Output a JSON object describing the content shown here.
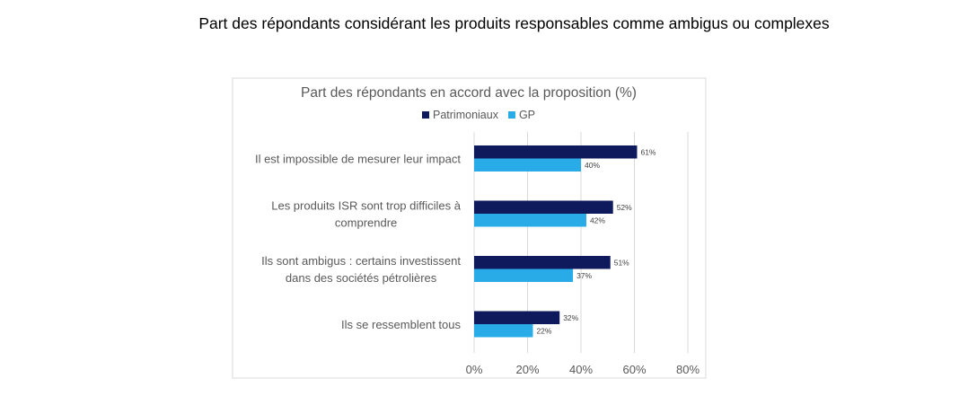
{
  "page_title": "Part des répondants considérant les produits responsables comme ambigus ou complexes",
  "chart_data": {
    "type": "bar",
    "orientation": "horizontal",
    "title": "Part des répondants en accord avec la proposition (%)",
    "categories": [
      [
        "Il est impossible de mesurer leur impact"
      ],
      [
        "Les produits ISR sont trop difficiles à",
        "comprendre"
      ],
      [
        "Ils sont ambigus : certains investissent",
        "dans des sociétés pétrolières"
      ],
      [
        "Ils se ressemblent tous"
      ]
    ],
    "series": [
      {
        "name": "Patrimoniaux",
        "color": "#0f1a5c",
        "values": [
          61,
          52,
          51,
          32
        ],
        "labels": [
          "61%",
          "52%",
          "51%",
          "32%"
        ]
      },
      {
        "name": "GP",
        "color": "#29abe8",
        "values": [
          40,
          42,
          37,
          22
        ],
        "labels": [
          "40%",
          "42%",
          "37%",
          "22%"
        ]
      }
    ],
    "xlim": [
      0,
      80
    ],
    "xticks": [
      0,
      20,
      40,
      60,
      80
    ],
    "xtick_labels": [
      "0%",
      "20%",
      "40%",
      "60%",
      "80%"
    ],
    "grid": true,
    "legend": "top"
  }
}
